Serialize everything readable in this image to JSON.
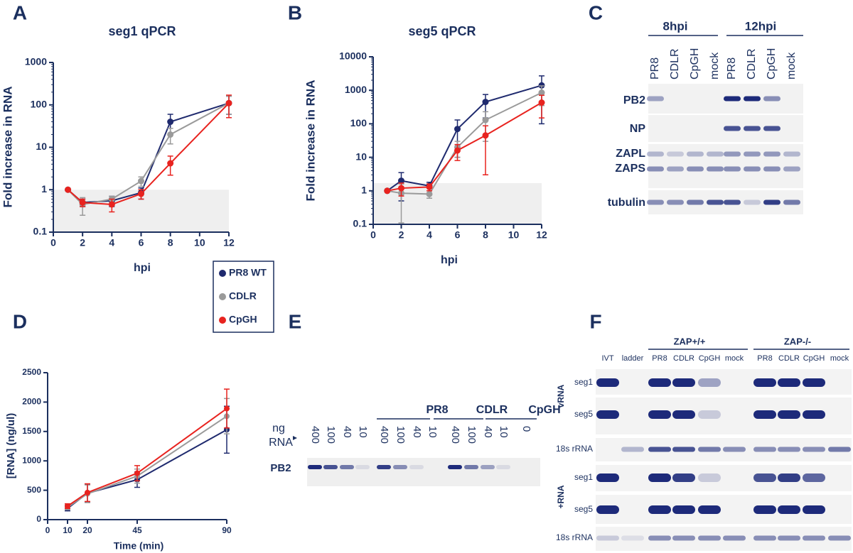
{
  "panel_labels": [
    "A",
    "B",
    "C",
    "D",
    "E",
    "F"
  ],
  "chart_data": [
    {
      "type": "line",
      "title": "seg1 qPCR",
      "xlabel": "hpi",
      "ylabel": "Fold increase in RNA",
      "log_y": true,
      "legend": true,
      "x": [
        1,
        2,
        4,
        6,
        8,
        12
      ],
      "xlim": [
        0,
        12
      ],
      "xticks": [
        0,
        2,
        4,
        6,
        8,
        10,
        12
      ],
      "ylim": [
        0.1,
        1000
      ],
      "yticks": [
        0.1,
        1,
        10,
        100,
        1000
      ],
      "band": [
        0.1,
        1
      ],
      "series": [
        {
          "name": "PR8 WT",
          "color": "#1f2a6e",
          "values": [
            1,
            0.5,
            0.55,
            0.85,
            40,
            110
          ],
          "errors": [
            0,
            0.1,
            0.15,
            0.25,
            20,
            50
          ]
        },
        {
          "name": "CDLR",
          "color": "#9a9a9a",
          "values": [
            1,
            0.45,
            0.6,
            1.6,
            20,
            110
          ],
          "errors": [
            0,
            0.2,
            0.1,
            0.4,
            8,
            50
          ]
        },
        {
          "name": "CpGH",
          "color": "#e8231f",
          "values": [
            1,
            0.5,
            0.45,
            0.8,
            4.2,
            110
          ],
          "errors": [
            0,
            0.1,
            0.15,
            0.2,
            2,
            60
          ]
        }
      ]
    },
    {
      "type": "line",
      "title": "seg5 qPCR",
      "xlabel": "hpi",
      "ylabel": "Fold increase in RNA",
      "log_y": true,
      "x": [
        1,
        2,
        4,
        6,
        8,
        12
      ],
      "xlim": [
        0,
        12
      ],
      "xticks": [
        0,
        2,
        4,
        6,
        8,
        10,
        12
      ],
      "ylim": [
        0.1,
        10000
      ],
      "yticks": [
        0.1,
        1,
        10,
        100,
        1000,
        10000
      ],
      "band": [
        0.1,
        1.7
      ],
      "series": [
        {
          "name": "PR8 WT",
          "color": "#1f2a6e",
          "values": [
            1,
            2,
            1.4,
            70,
            450,
            1400
          ],
          "errors": [
            0,
            1.5,
            0.4,
            60,
            300,
            1300
          ]
        },
        {
          "name": "CDLR",
          "color": "#9a9a9a",
          "values": [
            1,
            0.85,
            0.8,
            20,
            130,
            850
          ],
          "errors": [
            0,
            0.74,
            0.2,
            10,
            100,
            500
          ]
        },
        {
          "name": "CpGH",
          "color": "#e8231f",
          "values": [
            1,
            1.2,
            1.3,
            16,
            45,
            430
          ],
          "errors": [
            0,
            0.5,
            0.3,
            8,
            42,
            280
          ]
        }
      ]
    },
    {
      "type": "line",
      "xlabel": "Time (min)",
      "ylabel": "[RNA] (ng/ul)",
      "log_y": false,
      "x": [
        10,
        20,
        45,
        90
      ],
      "xlim": [
        0,
        90
      ],
      "xticks": [
        0,
        10,
        20,
        45,
        90
      ],
      "ylim": [
        0,
        2500
      ],
      "yticks": [
        0,
        500,
        1000,
        1500,
        2000,
        2500
      ],
      "series": [
        {
          "name": "PR8 WT",
          "color": "#1f2a6e",
          "values": [
            190,
            450,
            680,
            1530
          ],
          "errors": [
            40,
            150,
            130,
            400
          ]
        },
        {
          "name": "CDLR",
          "color": "#9a9a9a",
          "values": [
            210,
            440,
            740,
            1760
          ],
          "errors": [
            40,
            150,
            120,
            300
          ]
        },
        {
          "name": "CpGH",
          "color": "#e8231f",
          "values": [
            230,
            460,
            790,
            1890
          ],
          "errors": [
            40,
            150,
            130,
            330
          ]
        }
      ]
    }
  ],
  "blot_c": {
    "groups": [
      "8hpi",
      "12hpi"
    ],
    "lanes": [
      "PR8",
      "CDLR",
      "CpGH",
      "mock",
      "PR8",
      "CDLR",
      "CpGH",
      "mock"
    ],
    "rows": [
      "PB2",
      "NP",
      "ZAPL",
      "ZAPS",
      "tubulin"
    ]
  },
  "blot_e": {
    "groups": [
      "PR8",
      "CDLR",
      "CpGH"
    ],
    "amount_label": [
      "ng",
      "RNA"
    ],
    "lanes": [
      "400",
      "100",
      "40",
      "10",
      "400",
      "100",
      "40",
      "10",
      "400",
      "100",
      "40",
      "10",
      "0"
    ],
    "rows": [
      "PB2"
    ]
  },
  "blot_f": {
    "groups": [
      "ZAP+/+",
      "ZAP-/-"
    ],
    "lanes": [
      "IVT",
      "ladder",
      "PR8",
      "CDLR",
      "CpGH",
      "mock",
      "PR8",
      "CDLR",
      "CpGH",
      "mock"
    ],
    "sections": [
      "vRNA",
      "+RNA"
    ],
    "rows": [
      "seg1",
      "seg5",
      "18s rRNA",
      "seg1",
      "seg5",
      "18s rRNA"
    ]
  }
}
